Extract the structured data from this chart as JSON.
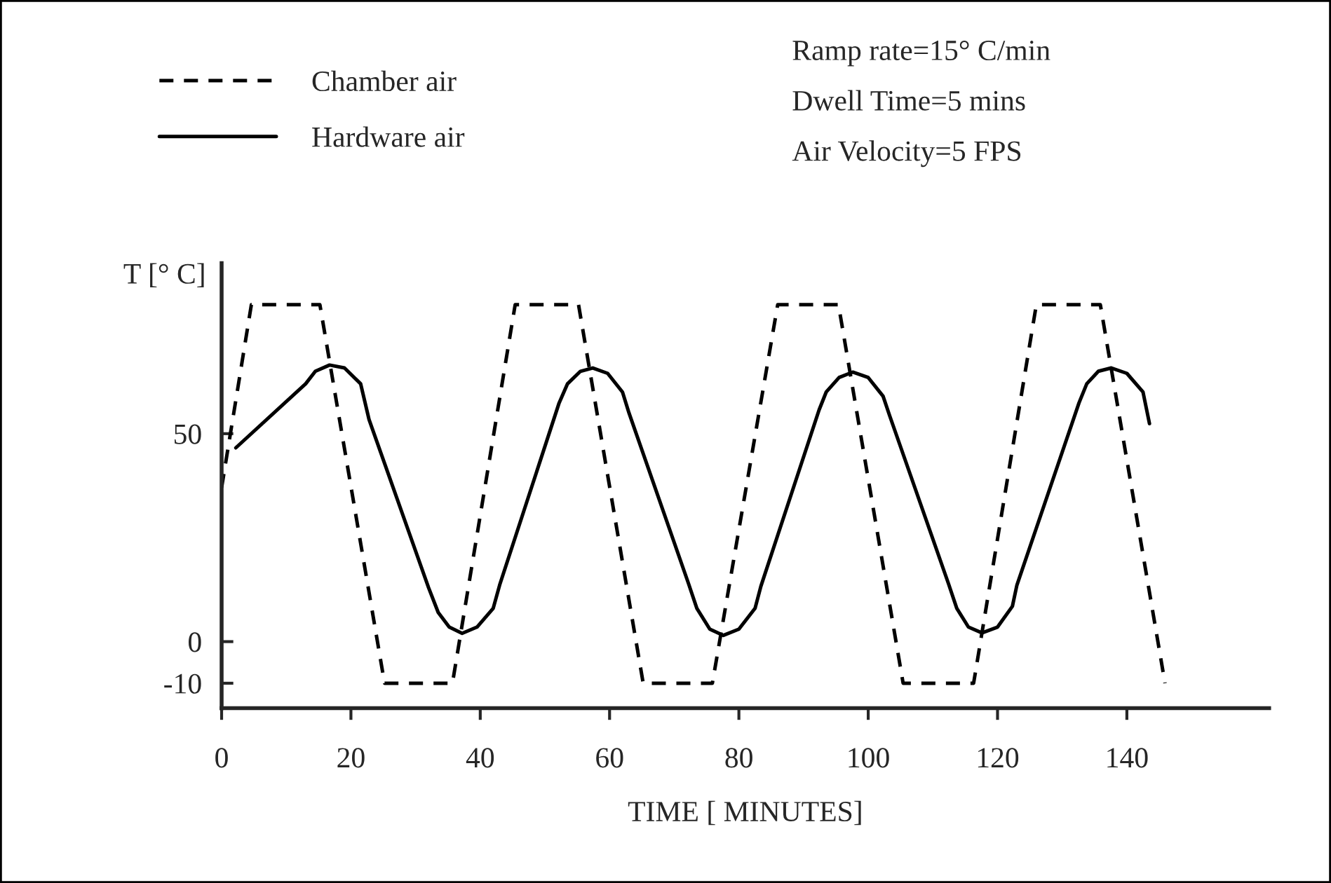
{
  "chart_data": {
    "type": "line",
    "xlabel": "TIME [ MINUTES]",
    "ylabel": "T [° C]",
    "annotations": [
      "Ramp rate=15° C/min",
      "Dwell Time=5 mins",
      "Air Velocity=5 FPS"
    ],
    "xlim": [
      0,
      162
    ],
    "ylim": [
      -16,
      91
    ],
    "xticks": [
      0,
      20,
      40,
      60,
      80,
      100,
      120,
      140
    ],
    "yticks": [
      -10,
      0,
      50
    ],
    "grid": false,
    "legend": "top left",
    "series": [
      {
        "name": "Chamber air",
        "color": "#000000",
        "line_style": "dashed",
        "x": [
          0,
          4.6,
          15.2,
          25.2,
          35.7,
          45.4,
          55.2,
          65.2,
          75.9,
          86,
          95.4,
          105.4,
          116.3,
          126,
          135.9,
          145.9
        ],
        "values": [
          37,
          81,
          81,
          -10,
          -10,
          81,
          81,
          -10,
          -10,
          81,
          81,
          -10,
          -10,
          81,
          81,
          -10
        ]
      },
      {
        "name": "Hardware air",
        "color": "#000000",
        "line_style": "solid",
        "x": [
          2.2,
          13,
          14.5,
          16.7,
          19,
          21.5,
          22.8,
          32,
          33.5,
          35.2,
          37.2,
          39.5,
          42,
          43,
          52.2,
          53.5,
          55.5,
          57.4,
          59.7,
          62,
          63,
          72.2,
          73.5,
          75.5,
          77.6,
          80,
          82.5,
          83.4,
          92.4,
          93.5,
          95.5,
          97.6,
          100,
          102.3,
          103.3,
          112.4,
          113.7,
          115.5,
          117.6,
          120,
          122.3,
          123,
          132.6,
          133.8,
          135.6,
          137.6,
          140,
          142.5,
          143.5
        ],
        "values": [
          46.6,
          62,
          65,
          66.5,
          65.8,
          62,
          53.4,
          13,
          7,
          3.5,
          2,
          3.5,
          8,
          13.6,
          57.4,
          62,
          65,
          65.8,
          64.5,
          60,
          55,
          14,
          8,
          3,
          1.5,
          3,
          8,
          13.3,
          55.7,
          60,
          63.5,
          64.8,
          63.5,
          59,
          54.4,
          14,
          8,
          3.5,
          2.1,
          3.5,
          8.5,
          13.6,
          57.4,
          62,
          65,
          65.8,
          64.5,
          60,
          52.4
        ]
      }
    ]
  }
}
